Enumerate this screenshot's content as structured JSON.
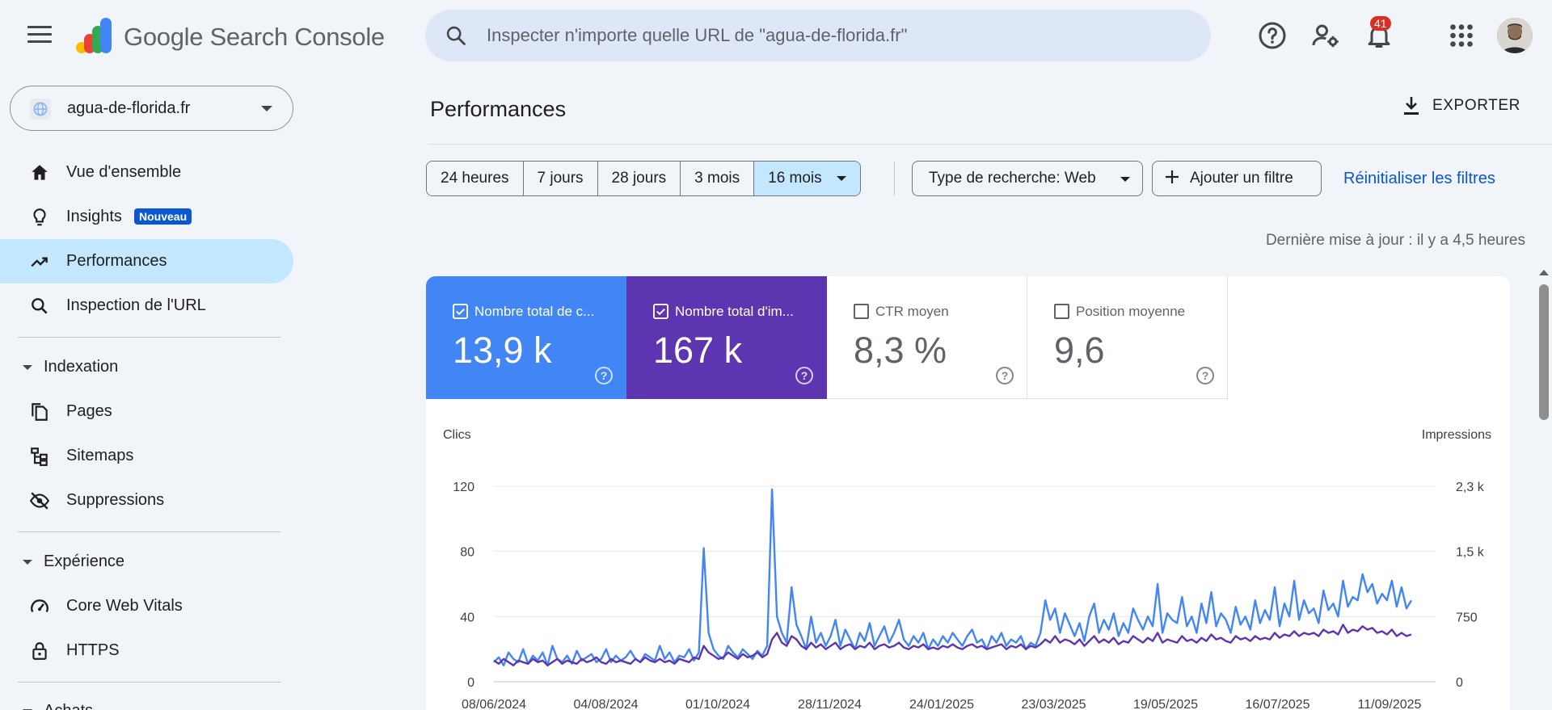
{
  "app": {
    "brand": "Google Search Console"
  },
  "search": {
    "placeholder": "Inspecter n'importe quelle URL de \"agua-de-florida.fr\""
  },
  "topbar": {
    "notification_count": "41",
    "icons": [
      "help-icon",
      "manage-users-icon",
      "notifications-icon",
      "apps-grid-icon"
    ]
  },
  "property": {
    "name": "agua-de-florida.fr"
  },
  "sidebar": {
    "items": [
      {
        "label": "Vue d'ensemble",
        "icon": "home-icon"
      },
      {
        "label": "Insights",
        "icon": "lightbulb-icon",
        "badge": "Nouveau"
      },
      {
        "label": "Performances",
        "icon": "trending-up-icon",
        "active": true
      },
      {
        "label": "Inspection de l'URL",
        "icon": "search-icon"
      }
    ],
    "sections": [
      {
        "label": "Indexation",
        "items": [
          {
            "label": "Pages",
            "icon": "pages-icon"
          },
          {
            "label": "Sitemaps",
            "icon": "sitemap-icon"
          },
          {
            "label": "Suppressions",
            "icon": "visibility-off-icon"
          }
        ]
      },
      {
        "label": "Expérience",
        "items": [
          {
            "label": "Core Web Vitals",
            "icon": "speed-gauge-icon"
          },
          {
            "label": "HTTPS",
            "icon": "lock-icon"
          }
        ]
      },
      {
        "label": "Achats"
      }
    ]
  },
  "main": {
    "title": "Performances",
    "export_label": "EXPORTER",
    "date_ranges": [
      "24 heures",
      "7 jours",
      "28 jours",
      "3 mois",
      "16 mois"
    ],
    "selected_range": "16 mois",
    "search_type_filter": "Type de recherche: Web",
    "add_filter_label": "Ajouter un filtre",
    "reset_label": "Réinitialiser les filtres",
    "last_update": "Dernière mise à jour : il y a 4,5 heures"
  },
  "metrics": [
    {
      "label": "Nombre total de c...",
      "value": "13,9 k",
      "checked": true,
      "color": "#4285f4"
    },
    {
      "label": "Nombre total d'im...",
      "value": "167 k",
      "checked": true,
      "color": "#5e35b1"
    },
    {
      "label": "CTR moyen",
      "value": "8,3 %",
      "checked": false
    },
    {
      "label": "Position moyenne",
      "value": "9,6",
      "checked": false
    }
  ],
  "chart_data": {
    "type": "line",
    "left_axis": {
      "label": "Clics",
      "ticks": [
        "0",
        "40",
        "80",
        "120"
      ],
      "range": [
        0,
        120
      ]
    },
    "right_axis": {
      "label": "Impressions",
      "ticks": [
        "0",
        "750",
        "1,5 k",
        "2,3 k"
      ],
      "range": [
        0,
        2300
      ]
    },
    "x_tick_labels": [
      "08/06/2024",
      "04/08/2024",
      "01/10/2024",
      "28/11/2024",
      "24/01/2025",
      "23/03/2025",
      "19/05/2025",
      "16/07/2025",
      "11/09/2025"
    ],
    "series": [
      {
        "name": "Clics",
        "color": "#4285f4",
        "axis": "left",
        "values": [
          12,
          15,
          10,
          18,
          14,
          12,
          20,
          11,
          16,
          13,
          18,
          10,
          22,
          14,
          12,
          16,
          11,
          19,
          13,
          15,
          17,
          12,
          14,
          20,
          12,
          16,
          13,
          15,
          19,
          14,
          12,
          17,
          15,
          13,
          22,
          14,
          18,
          12,
          16,
          15,
          20,
          13,
          18,
          82,
          30,
          20,
          16,
          14,
          22,
          18,
          15,
          20,
          17,
          14,
          19,
          16,
          22,
          118,
          40,
          30,
          24,
          58,
          35,
          28,
          20,
          40,
          24,
          30,
          22,
          28,
          38,
          22,
          32,
          26,
          20,
          30,
          25,
          36,
          22,
          28,
          34,
          24,
          30,
          38,
          26,
          22,
          28,
          24,
          30,
          20,
          26,
          22,
          28,
          24,
          30,
          26,
          22,
          28,
          32,
          24,
          26,
          20,
          28,
          24,
          30,
          22,
          26,
          24,
          28,
          20,
          24,
          22,
          30,
          50,
          38,
          45,
          30,
          42,
          35,
          28,
          36,
          25,
          40,
          48,
          30,
          38,
          32,
          42,
          28,
          36,
          30,
          45,
          38,
          32,
          40,
          34,
          60,
          30,
          42,
          38,
          36,
          52,
          34,
          40,
          30,
          48,
          36,
          55,
          34,
          42,
          38,
          30,
          46,
          35,
          40,
          32,
          50,
          36,
          44,
          38,
          58,
          34,
          48,
          40,
          62,
          38,
          50,
          42,
          45,
          36,
          56,
          44,
          48,
          40,
          62,
          46,
          52,
          50,
          66,
          55,
          60,
          48,
          54,
          50,
          62,
          46,
          58,
          45,
          50
        ]
      },
      {
        "name": "Impressions",
        "color": "#5e35b1",
        "axis": "left_scaled",
        "values": [
          13,
          11,
          14,
          12,
          10,
          13,
          12,
          11,
          14,
          12,
          13,
          10,
          12,
          14,
          11,
          13,
          12,
          11,
          14,
          12,
          13,
          15,
          12,
          11,
          14,
          12,
          13,
          12,
          11,
          14,
          12,
          15,
          13,
          12,
          14,
          12,
          13,
          11,
          14,
          13,
          12,
          15,
          14,
          22,
          18,
          16,
          14,
          15,
          18,
          16,
          14,
          17,
          15,
          16,
          18,
          15,
          17,
          26,
          30,
          24,
          22,
          28,
          26,
          22,
          20,
          24,
          21,
          23,
          20,
          22,
          24,
          20,
          22,
          23,
          20,
          22,
          21,
          24,
          20,
          22,
          23,
          21,
          22,
          24,
          21,
          20,
          22,
          21,
          23,
          20,
          21,
          20,
          22,
          21,
          23,
          21,
          20,
          22,
          23,
          21,
          22,
          20,
          21,
          22,
          23,
          20,
          22,
          21,
          23,
          20,
          22,
          21,
          23,
          26,
          24,
          28,
          24,
          26,
          25,
          23,
          26,
          22,
          25,
          28,
          24,
          26,
          24,
          27,
          23,
          25,
          24,
          28,
          26,
          24,
          27,
          25,
          30,
          24,
          26,
          25,
          24,
          28,
          25,
          26,
          24,
          27,
          25,
          29,
          26,
          27,
          25,
          24,
          28,
          26,
          27,
          25,
          28,
          26,
          27,
          26,
          30,
          27,
          29,
          28,
          31,
          28,
          30,
          29,
          30,
          28,
          32,
          30,
          31,
          29,
          35,
          30,
          32,
          31,
          34,
          32,
          33,
          30,
          31,
          29,
          32,
          28,
          30,
          28,
          29
        ]
      }
    ]
  }
}
